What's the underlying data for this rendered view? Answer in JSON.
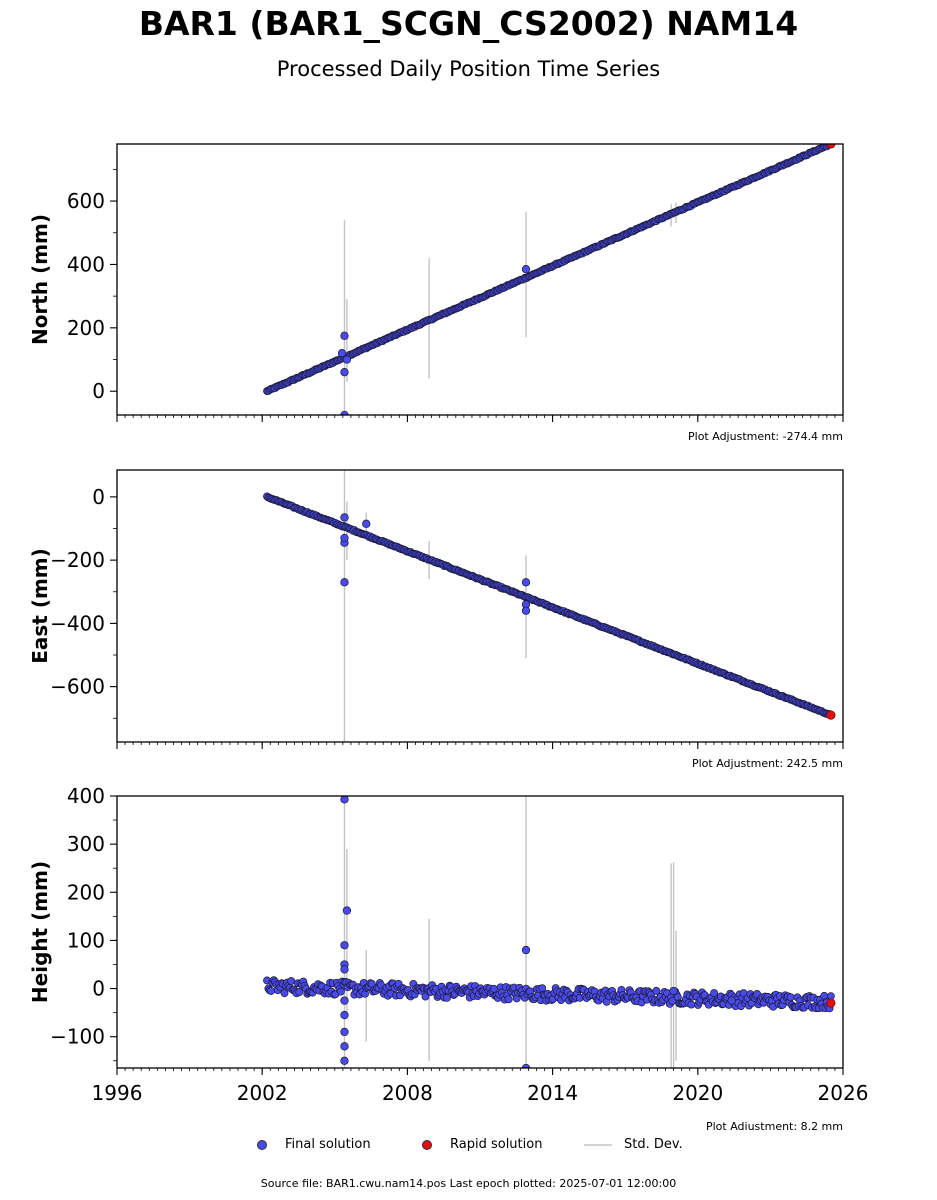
{
  "title": "BAR1 (BAR1_SCGN_CS2002) NAM14",
  "subtitle": "Processed Daily Position Time Series",
  "footer": "Source file: BAR1.cwu.nam14.pos  Last epoch plotted: 2025-07-01 12:00:00",
  "legend": {
    "final": "Final solution",
    "rapid": "Rapid solution",
    "std": "Std. Dev."
  },
  "colors": {
    "final": "#4a4ae8",
    "rapid": "#e01010",
    "std": "#b0b0b0",
    "edge": "#1a1a3a"
  },
  "chart_data": [
    {
      "type": "scatter",
      "ylabel": "North (mm)",
      "adjustment": "Plot Adjustment: -274.4 mm",
      "xlim": [
        1996,
        2026
      ],
      "ylim": [
        -75,
        780
      ],
      "yticks": [
        0,
        200,
        400,
        600
      ],
      "xticks": [
        1996,
        2002,
        2008,
        2014,
        2020,
        2026
      ],
      "trend": {
        "x": [
          2002.2,
          2025.5
        ],
        "y": [
          0,
          780
        ]
      },
      "final_outliers": [
        [
          2005.4,
          175
        ],
        [
          2005.4,
          60
        ],
        [
          2005.4,
          -75
        ],
        [
          2012.9,
          385
        ],
        [
          2005.3,
          120
        ],
        [
          2005.5,
          100
        ]
      ],
      "rapid": [
        [
          2025.5,
          780
        ]
      ],
      "std_bars": [
        [
          2005.4,
          -75,
          540
        ],
        [
          2005.5,
          30,
          290
        ],
        [
          2008.9,
          40,
          420
        ],
        [
          2012.9,
          170,
          565
        ],
        [
          2018.9,
          520,
          590
        ],
        [
          2019.1,
          530,
          595
        ]
      ]
    },
    {
      "type": "scatter",
      "ylabel": "East (mm)",
      "adjustment": "Plot Adjustment: 242.5 mm",
      "xlim": [
        1996,
        2026
      ],
      "ylim": [
        -775,
        85
      ],
      "yticks": [
        -600,
        -400,
        -200,
        0
      ],
      "xticks": [
        1996,
        2002,
        2008,
        2014,
        2020,
        2026
      ],
      "trend": {
        "x": [
          2002.2,
          2025.5
        ],
        "y": [
          0,
          -690
        ]
      },
      "final_outliers": [
        [
          2005.4,
          -270
        ],
        [
          2005.4,
          -145
        ],
        [
          2005.4,
          -130
        ],
        [
          2005.4,
          -65
        ],
        [
          2006.3,
          -85
        ],
        [
          2012.9,
          -270
        ],
        [
          2012.9,
          -340
        ],
        [
          2012.9,
          -360
        ]
      ],
      "rapid": [
        [
          2025.5,
          -690
        ]
      ],
      "std_bars": [
        [
          2005.4,
          -775,
          85
        ],
        [
          2005.5,
          -200,
          -15
        ],
        [
          2006.3,
          -110,
          -50
        ],
        [
          2008.9,
          -260,
          -140
        ],
        [
          2012.9,
          -510,
          -185
        ]
      ]
    },
    {
      "type": "scatter",
      "ylabel": "Height (mm)",
      "adjustment": "Plot Adjustment: 8.2 mm",
      "xlim": [
        1996,
        2026
      ],
      "ylim": [
        -165,
        400
      ],
      "yticks": [
        -100,
        0,
        100,
        200,
        300,
        400
      ],
      "xticks": [
        1996,
        2002,
        2008,
        2014,
        2020,
        2026
      ],
      "xticklabels": [
        "1996",
        "2002",
        "2008",
        "2014",
        "2020",
        "2026"
      ],
      "trend": {
        "x": [
          2002.2,
          2025.5
        ],
        "y": [
          5,
          -28
        ]
      },
      "scatter_amplitude": 14,
      "final_outliers": [
        [
          2005.4,
          393
        ],
        [
          2005.5,
          162
        ],
        [
          2005.4,
          90
        ],
        [
          2005.4,
          50
        ],
        [
          2005.4,
          40
        ],
        [
          2005.4,
          -25
        ],
        [
          2005.4,
          -55
        ],
        [
          2005.4,
          -90
        ],
        [
          2005.4,
          -120
        ],
        [
          2005.4,
          -150
        ],
        [
          2012.9,
          80
        ],
        [
          2012.9,
          -165
        ],
        [
          2019.0,
          -5
        ],
        [
          2021.4,
          -25
        ]
      ],
      "rapid": [
        [
          2025.5,
          -30
        ]
      ],
      "std_bars": [
        [
          2005.4,
          -165,
          400
        ],
        [
          2005.5,
          -60,
          290
        ],
        [
          2006.3,
          -110,
          80
        ],
        [
          2008.9,
          -150,
          145
        ],
        [
          2012.9,
          -165,
          400
        ],
        [
          2018.9,
          -165,
          260
        ],
        [
          2019.0,
          -165,
          262
        ],
        [
          2019.1,
          -150,
          120
        ]
      ]
    }
  ]
}
